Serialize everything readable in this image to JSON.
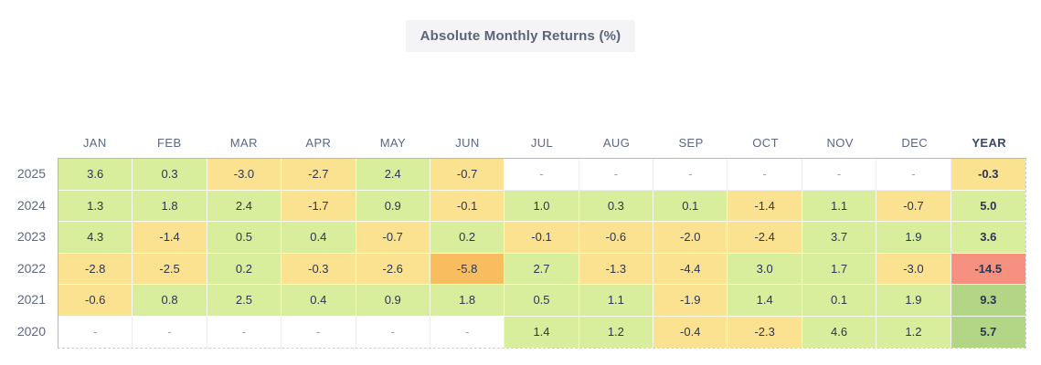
{
  "title": "Absolute Monthly Returns (%)",
  "colors": {
    "title_bg": "#f4f4f6",
    "title_text": "#5b6478",
    "header_text": "#5c6784",
    "year_header_text": "#3c4666",
    "cell_text": "#2b3554",
    "empty_dash_text": "#9aa0ae",
    "border_solid": "#b4b8c2",
    "border_dashed": "#cdd0d7",
    "strong_positive": "#b2d685",
    "positive": "#d8ee9d",
    "mild_negative": "#fbe291",
    "strong_negative": "#f8bd5f",
    "extreme_negative": "#f69080",
    "empty": "#ffffff"
  },
  "color_thresholds": {
    "strong_positive_over": 5,
    "positive_min": 0,
    "mild_negative_over": -5,
    "strong_negative_over": -10
  },
  "chart_data": {
    "type": "heatmap",
    "title": "Absolute Monthly Returns (%)",
    "empty_label": "-",
    "columns": [
      "JAN",
      "FEB",
      "MAR",
      "APR",
      "MAY",
      "JUN",
      "JUL",
      "AUG",
      "SEP",
      "OCT",
      "NOV",
      "DEC",
      "YEAR"
    ],
    "rows": [
      "2025",
      "2024",
      "2023",
      "2022",
      "2021",
      "2020"
    ],
    "values": [
      [
        3.6,
        0.3,
        -3.0,
        -2.7,
        2.4,
        -0.7,
        null,
        null,
        null,
        null,
        null,
        null,
        -0.3
      ],
      [
        1.3,
        1.8,
        2.4,
        -1.7,
        0.9,
        -0.1,
        1.0,
        0.3,
        0.1,
        -1.4,
        1.1,
        -0.7,
        5.0
      ],
      [
        4.3,
        -1.4,
        0.5,
        0.4,
        -0.7,
        0.2,
        -0.1,
        -0.6,
        -2.0,
        -2.4,
        3.7,
        1.9,
        3.6
      ],
      [
        -2.8,
        -2.5,
        0.2,
        -0.3,
        -2.6,
        -5.8,
        2.7,
        -1.3,
        -4.4,
        3.0,
        1.7,
        -3.0,
        -14.5
      ],
      [
        -0.6,
        0.8,
        2.5,
        0.4,
        0.9,
        1.8,
        0.5,
        1.1,
        -1.9,
        1.4,
        0.1,
        1.9,
        9.3
      ],
      [
        null,
        null,
        null,
        null,
        null,
        null,
        1.4,
        1.2,
        -0.4,
        -2.3,
        4.6,
        1.2,
        5.7
      ]
    ],
    "legend": "none",
    "grid": "cell-borders",
    "color_scale_note": "green=positive, darker green > 5, yellow = 0 to -5, orange = -5 to -10, red <= -10, white = no data"
  }
}
